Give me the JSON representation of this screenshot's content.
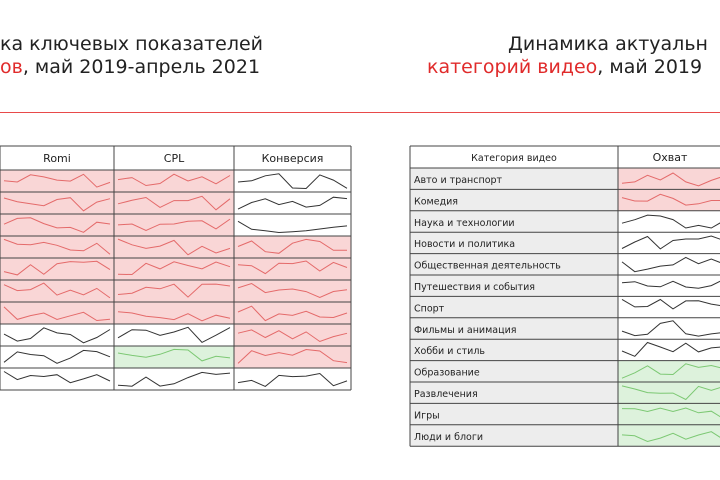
{
  "left_title": {
    "line1": "ка ключевых показателей",
    "line2_red": "ов",
    "line2_rest": ", май 2019-апрель 2021"
  },
  "right_title": {
    "line1": "Динамика актуальн",
    "line2_red": "категорий видео",
    "line2_rest": ", май 2019"
  },
  "left_table": {
    "headers": [
      "Romi",
      "CPL",
      "Конверсия"
    ],
    "rows": [
      [
        "red",
        "red",
        "white"
      ],
      [
        "red",
        "red",
        "white"
      ],
      [
        "red",
        "red",
        "white"
      ],
      [
        "red",
        "red",
        "red"
      ],
      [
        "red",
        "red",
        "red"
      ],
      [
        "red",
        "red",
        "red"
      ],
      [
        "red",
        "red",
        "red"
      ],
      [
        "white",
        "white",
        "red"
      ],
      [
        "white",
        "green",
        "red"
      ],
      [
        "white",
        "white",
        "white"
      ]
    ]
  },
  "right_table": {
    "headers": [
      "Категория видео",
      "Охват"
    ],
    "rows": [
      {
        "label": "Авто и транспорт",
        "status": "red"
      },
      {
        "label": "Комедия",
        "status": "red"
      },
      {
        "label": "Наука и технологии",
        "status": "white"
      },
      {
        "label": "Новости и политика",
        "status": "white"
      },
      {
        "label": "Общественная деятельность",
        "status": "white"
      },
      {
        "label": "Путешествия и события",
        "status": "white"
      },
      {
        "label": "Спорт",
        "status": "white"
      },
      {
        "label": "Фильмы и анимация",
        "status": "white"
      },
      {
        "label": "Хобби и стиль",
        "status": "white"
      },
      {
        "label": "Образование",
        "status": "green"
      },
      {
        "label": "Развлечения",
        "status": "green"
      },
      {
        "label": "Игры",
        "status": "green"
      },
      {
        "label": "Люди и блоги",
        "status": "green"
      }
    ]
  },
  "colors": {
    "accent": "#e02b2b",
    "red_fill": "#f9d6d6",
    "green_fill": "#ddf2dc",
    "red_line": "#e46a6a",
    "green_line": "#7cc873",
    "gray_line": "#333333"
  }
}
